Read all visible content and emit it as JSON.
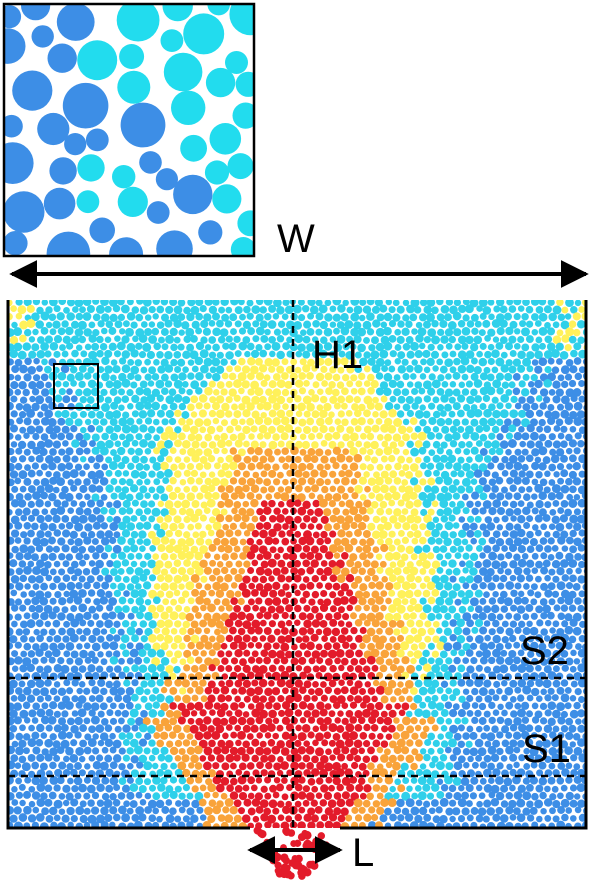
{
  "labels": {
    "width": "W",
    "height": "H1",
    "section_upper": "S2",
    "section_lower": "S1",
    "outlet": "L"
  },
  "inset": {
    "description_colors": [
      "#3d8ee6",
      "#22dcee"
    ]
  },
  "colors": {
    "blue": "#3d8ee6",
    "cyan": "#2fd0ea",
    "yellow": "#fff15a",
    "orange": "#f9a33a",
    "red": "#e31b2a",
    "outline": "#000000"
  },
  "region_legend": [
    "blue",
    "cyan",
    "yellow",
    "orange",
    "red"
  ]
}
